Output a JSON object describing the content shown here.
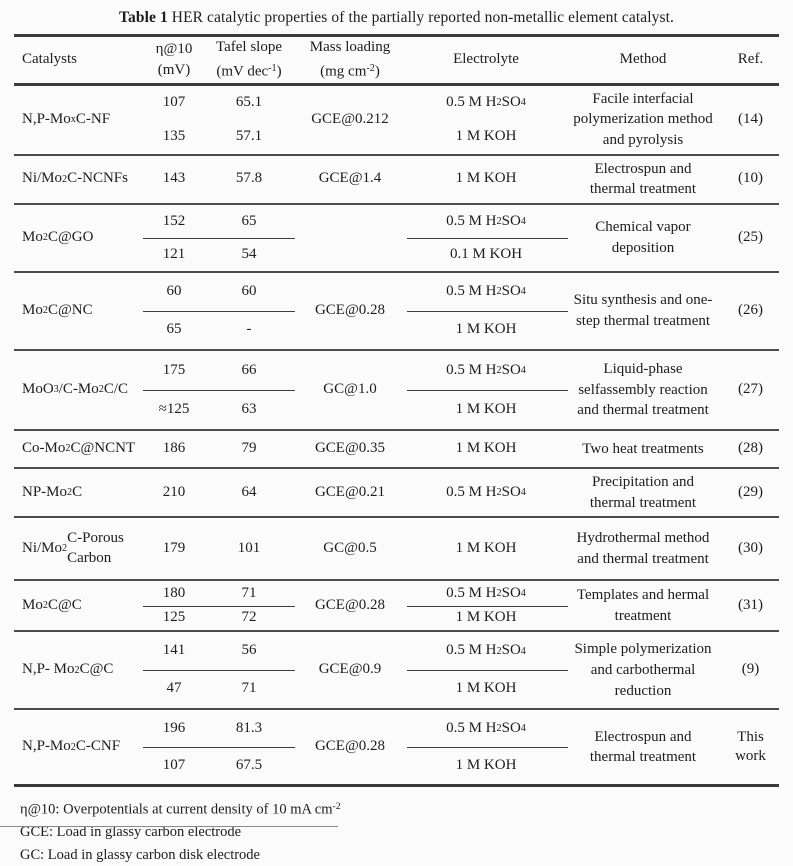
{
  "title": {
    "label": "Table 1",
    "text": " HER catalytic properties of the partially reported non-metallic element catalyst."
  },
  "table": {
    "headers": {
      "catalyst": [
        "Catalysts"
      ],
      "eta": [
        "η@10",
        "(mV)"
      ],
      "tafel": [
        "Tafel slope",
        "(mV dec^-1^)"
      ],
      "loading": [
        "Mass loading",
        "(mg cm^-2^)"
      ],
      "electrolyte": [
        "Electrolyte"
      ],
      "method": [
        "Method"
      ],
      "ref": [
        "Ref."
      ]
    },
    "rows": [
      {
        "catalyst": "N,P-Mo~x~C-NF",
        "eta": [
          "107",
          "135"
        ],
        "tafel": [
          "65.1",
          "57.1"
        ],
        "loading": "GCE@0.212",
        "electrolyte": [
          "0.5 M H~2~SO~4~",
          "1 M KOH"
        ],
        "method": "Facile interfacial polymerization method and pyrolysis",
        "ref": "(14)",
        "divider": false
      },
      {
        "catalyst": "Ni/Mo~2~C-NCNFs",
        "eta": [
          "143"
        ],
        "tafel": [
          "57.8"
        ],
        "loading": "GCE@1.4",
        "electrolyte": [
          "1 M KOH"
        ],
        "method": "Electrospun and thermal treatment",
        "ref": "(10)",
        "divider": false
      },
      {
        "catalyst": "Mo~2~C@GO",
        "eta": [
          "152",
          "121"
        ],
        "tafel": [
          "65",
          "54"
        ],
        "loading": "",
        "electrolyte": [
          "0.5 M H~2~SO~4~",
          "0.1 M KOH"
        ],
        "method": "Chemical vapor deposition",
        "ref": "(25)",
        "divider": true
      },
      {
        "catalyst": "Mo~2~C@NC",
        "eta": [
          "60",
          "65"
        ],
        "tafel": [
          "60",
          "-"
        ],
        "loading": "GCE@0.28",
        "electrolyte": [
          "0.5 M H~2~SO~4~",
          "1 M KOH"
        ],
        "method": "Situ synthesis and one-step thermal treatment",
        "ref": "(26)",
        "divider": true
      },
      {
        "catalyst": "MoO~3~/C-Mo~2~C/C",
        "eta": [
          "175",
          "≈125"
        ],
        "tafel": [
          "66",
          "63"
        ],
        "loading": "GC@1.0",
        "electrolyte": [
          "0.5 M H~2~SO~4~",
          "1 M KOH"
        ],
        "method": "Liquid-phase selfassembly reaction and thermal treatment",
        "ref": "(27)",
        "divider": true
      },
      {
        "catalyst": "Co-Mo~2~C@NCNT",
        "eta": [
          "186"
        ],
        "tafel": [
          "79"
        ],
        "loading": "GCE@0.35",
        "electrolyte": [
          "1 M KOH"
        ],
        "method": "Two heat treatments",
        "ref": "(28)",
        "divider": false
      },
      {
        "catalyst": "NP-Mo~2~C",
        "eta": [
          "210"
        ],
        "tafel": [
          "64"
        ],
        "loading": "GCE@0.21",
        "electrolyte": [
          "0.5 M H~2~SO~4~"
        ],
        "method": "Precipitation and thermal treatment",
        "ref": "(29)",
        "divider": false
      },
      {
        "catalyst": "Ni/Mo~2~C-Porous Carbon",
        "eta": [
          "179"
        ],
        "tafel": [
          "101"
        ],
        "loading": "GC@0.5",
        "electrolyte": [
          "1 M KOH"
        ],
        "method": "Hydrothermal method and thermal treatment",
        "ref": "(30)",
        "divider": false
      },
      {
        "catalyst": "Mo~2~C@C",
        "eta": [
          "180",
          "125"
        ],
        "tafel": [
          "71",
          "72"
        ],
        "loading": "GCE@0.28",
        "electrolyte": [
          "0.5 M H~2~SO~4~",
          "1 M KOH"
        ],
        "method": "Templates and hermal treatment",
        "ref": "(31)",
        "divider": true
      },
      {
        "catalyst": "N,P- Mo~2~C@C",
        "eta": [
          "141",
          "47"
        ],
        "tafel": [
          "56",
          "71"
        ],
        "loading": "GCE@0.9",
        "electrolyte": [
          "0.5 M H~2~SO~4~",
          "1 M KOH"
        ],
        "method": "Simple polymerization and carbothermal reduction",
        "ref": "(9)",
        "divider": true
      },
      {
        "catalyst": "N,P-Mo~2~C-CNF",
        "eta": [
          "196",
          "107"
        ],
        "tafel": [
          "81.3",
          "67.5"
        ],
        "loading": "GCE@0.28",
        "electrolyte": [
          "0.5 M H~2~SO~4~",
          "1 M KOH"
        ],
        "method": "Electrospun and thermal treatment",
        "ref": "This work",
        "divider": true
      }
    ]
  },
  "footnotes": [
    "η@10: Overpotentials at current density of 10 mA cm^-2^",
    "GCE: Load in glassy carbon electrode",
    "GC: Load in glassy carbon disk electrode"
  ]
}
